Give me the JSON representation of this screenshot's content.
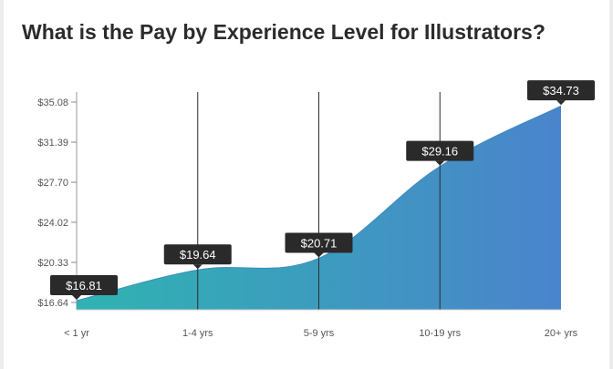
{
  "title": "What is the Pay by Experience Level for Illustrators?",
  "chart_data": {
    "type": "area",
    "title": "What is the Pay by Experience Level for Illustrators?",
    "xlabel": "",
    "ylabel": "",
    "categories": [
      "< 1 yr",
      "1-4 yrs",
      "5-9 yrs",
      "10-19 yrs",
      "20+ yrs"
    ],
    "values": [
      16.81,
      19.64,
      20.71,
      29.16,
      34.73
    ],
    "value_labels": [
      "$16.81",
      "$19.64",
      "$20.71",
      "$29.16",
      "$34.73"
    ],
    "yticks": [
      "$16.64",
      "$20.33",
      "$24.02",
      "$27.70",
      "$31.39",
      "$35.08"
    ],
    "ytick_values": [
      16.64,
      20.33,
      24.02,
      27.7,
      31.39,
      35.08
    ],
    "ylim": [
      16.64,
      35.08
    ],
    "grid": "vertical lines at categories",
    "legend": "none",
    "colors": {
      "gradient_start": "#2fb3b1",
      "gradient_end": "#4a84cc",
      "callout_bg": "#2a2a2a",
      "callout_text": "#ffffff"
    }
  }
}
